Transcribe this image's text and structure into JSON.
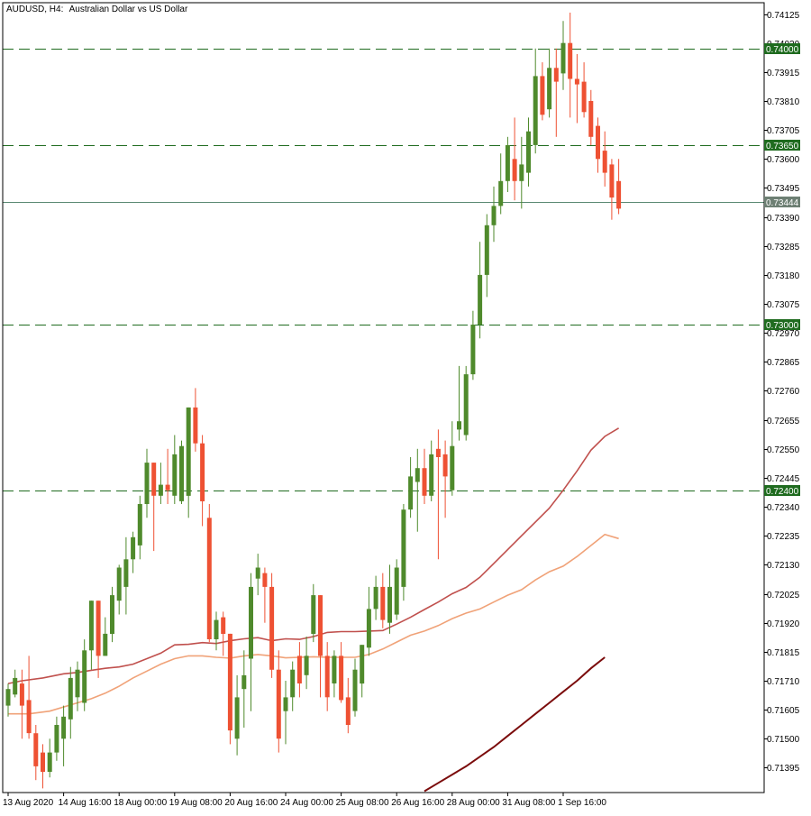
{
  "header": {
    "symbol": "AUDUSD, H4:",
    "description": "Australian Dollar vs US Dollar"
  },
  "colors": {
    "background": "#ffffff",
    "frame": "#000000",
    "bull_candle": "#4f8a2c",
    "bear_candle": "#ee5133",
    "level_line": "#1f6b1f",
    "current_price_line": "#5b8a74",
    "ma_fast": "#c0504d",
    "ma_mid": "#f0a278",
    "ma_slow": "#7b0c0c"
  },
  "chart_data": {
    "type": "candlestick",
    "symbol": "AUDUSD",
    "timeframe": "H4",
    "ylim": [
      0.71305,
      0.74166
    ],
    "y_ticks": [
      "0.74125",
      "0.74020",
      "0.73915",
      "0.73810",
      "0.73705",
      "0.73600",
      "0.73495",
      "0.73390",
      "0.73285",
      "0.73180",
      "0.73075",
      "0.72970",
      "0.72865",
      "0.72760",
      "0.72655",
      "0.72550",
      "0.72445",
      "0.72340",
      "0.72235",
      "0.72130",
      "0.72025",
      "0.71920",
      "0.71815",
      "0.71710",
      "0.71605",
      "0.71500",
      "0.71395"
    ],
    "x_labels": [
      {
        "index": 0,
        "label": "13 Aug 2020"
      },
      {
        "index": 8,
        "label": "14 Aug 16:00"
      },
      {
        "index": 16,
        "label": "18 Aug 00:00"
      },
      {
        "index": 24,
        "label": "19 Aug 08:00"
      },
      {
        "index": 32,
        "label": "20 Aug 16:00"
      },
      {
        "index": 40,
        "label": "24 Aug 00:00"
      },
      {
        "index": 48,
        "label": "25 Aug 08:00"
      },
      {
        "index": 56,
        "label": "26 Aug 16:00"
      },
      {
        "index": 64,
        "label": "28 Aug 00:00"
      },
      {
        "index": 72,
        "label": "31 Aug 08:00"
      },
      {
        "index": 80,
        "label": "1 Sep 16:00"
      }
    ],
    "price_levels": [
      {
        "value": 0.74,
        "label": "0.74000"
      },
      {
        "value": 0.7365,
        "label": "0.73650"
      },
      {
        "value": 0.73,
        "label": "0.73000"
      },
      {
        "value": 0.724,
        "label": "0.72400"
      }
    ],
    "current_price": {
      "value": 0.73444,
      "label": "0.73444"
    },
    "candles": [
      [
        0.7162,
        0.7168,
        0.7158,
        0.717
      ],
      [
        0.7166,
        0.7172,
        0.7165,
        0.7175
      ],
      [
        0.717,
        0.7162,
        0.715,
        0.7175
      ],
      [
        0.7164,
        0.7152,
        0.715,
        0.718
      ],
      [
        0.7152,
        0.714,
        0.7135,
        0.7155
      ],
      [
        0.7145,
        0.7138,
        0.7132,
        0.7148
      ],
      [
        0.7138,
        0.7145,
        0.7136,
        0.715
      ],
      [
        0.7145,
        0.7155,
        0.7142,
        0.7158
      ],
      [
        0.715,
        0.7158,
        0.714,
        0.7162
      ],
      [
        0.7157,
        0.7172,
        0.715,
        0.7176
      ],
      [
        0.7165,
        0.7175,
        0.716,
        0.7178
      ],
      [
        0.7163,
        0.7182,
        0.716,
        0.7186
      ],
      [
        0.7182,
        0.72,
        0.7175,
        0.72
      ],
      [
        0.72,
        0.718,
        0.7172,
        0.72
      ],
      [
        0.718,
        0.7188,
        0.718,
        0.7194
      ],
      [
        0.7188,
        0.7202,
        0.7185,
        0.7205
      ],
      [
        0.72,
        0.7212,
        0.7195,
        0.7213
      ],
      [
        0.7205,
        0.7215,
        0.7195,
        0.7223
      ],
      [
        0.7215,
        0.7223,
        0.721,
        0.7225
      ],
      [
        0.722,
        0.7235,
        0.7215,
        0.7238
      ],
      [
        0.7235,
        0.725,
        0.723,
        0.7255
      ],
      [
        0.725,
        0.7238,
        0.7218,
        0.725
      ],
      [
        0.7238,
        0.7242,
        0.7235,
        0.725
      ],
      [
        0.7242,
        0.724,
        0.7235,
        0.7255
      ],
      [
        0.7238,
        0.7253,
        0.7235,
        0.726
      ],
      [
        0.7236,
        0.7256,
        0.7235,
        0.7258
      ],
      [
        0.7238,
        0.727,
        0.723,
        0.727
      ],
      [
        0.727,
        0.7257,
        0.7254,
        0.7277
      ],
      [
        0.7257,
        0.7236,
        0.7227,
        0.726
      ],
      [
        0.723,
        0.7186,
        0.7185,
        0.7235
      ],
      [
        0.7186,
        0.7193,
        0.7182,
        0.7196
      ],
      [
        0.7194,
        0.7188,
        0.718,
        0.7196
      ],
      [
        0.7188,
        0.7153,
        0.7148,
        0.7188
      ],
      [
        0.715,
        0.7165,
        0.7144,
        0.7173
      ],
      [
        0.7168,
        0.7173,
        0.7154,
        0.7182
      ],
      [
        0.7179,
        0.7205,
        0.716,
        0.721
      ],
      [
        0.7208,
        0.7212,
        0.7202,
        0.7217
      ],
      [
        0.721,
        0.7205,
        0.7192,
        0.7212
      ],
      [
        0.7205,
        0.7175,
        0.7172,
        0.721
      ],
      [
        0.7175,
        0.715,
        0.7145,
        0.7182
      ],
      [
        0.716,
        0.7165,
        0.7148,
        0.7171
      ],
      [
        0.7165,
        0.7175,
        0.716,
        0.7178
      ],
      [
        0.718,
        0.717,
        0.7165,
        0.7185
      ],
      [
        0.7173,
        0.718,
        0.7168,
        0.7187
      ],
      [
        0.7188,
        0.7202,
        0.7185,
        0.7206
      ],
      [
        0.7202,
        0.718,
        0.7165,
        0.7202
      ],
      [
        0.718,
        0.7165,
        0.716,
        0.7185
      ],
      [
        0.717,
        0.718,
        0.7165,
        0.7182
      ],
      [
        0.718,
        0.7164,
        0.7163,
        0.7185
      ],
      [
        0.7165,
        0.7155,
        0.7152,
        0.7172
      ],
      [
        0.716,
        0.7175,
        0.7158,
        0.7179
      ],
      [
        0.717,
        0.7184,
        0.7165,
        0.7184
      ],
      [
        0.7183,
        0.7197,
        0.718,
        0.7205
      ],
      [
        0.7197,
        0.7205,
        0.7193,
        0.7209
      ],
      [
        0.7205,
        0.7193,
        0.719,
        0.721
      ],
      [
        0.7192,
        0.7205,
        0.7188,
        0.7213
      ],
      [
        0.7195,
        0.7212,
        0.7193,
        0.7215
      ],
      [
        0.7205,
        0.7233,
        0.72,
        0.7235
      ],
      [
        0.7233,
        0.7245,
        0.723,
        0.7252
      ],
      [
        0.7243,
        0.7248,
        0.7225,
        0.7255
      ],
      [
        0.7248,
        0.7238,
        0.7235,
        0.7255
      ],
      [
        0.7238,
        0.7253,
        0.7236,
        0.7258
      ],
      [
        0.7255,
        0.7252,
        0.7215,
        0.7262
      ],
      [
        0.7253,
        0.7245,
        0.723,
        0.7258
      ],
      [
        0.724,
        0.7256,
        0.7238,
        0.7265
      ],
      [
        0.7262,
        0.7265,
        0.7258,
        0.7285
      ],
      [
        0.726,
        0.7282,
        0.7258,
        0.7285
      ],
      [
        0.7282,
        0.73,
        0.728,
        0.7305
      ],
      [
        0.73,
        0.7318,
        0.7295,
        0.733
      ],
      [
        0.7318,
        0.7336,
        0.731,
        0.734
      ],
      [
        0.7336,
        0.7343,
        0.733,
        0.735
      ],
      [
        0.7343,
        0.7352,
        0.734,
        0.7362
      ],
      [
        0.7352,
        0.7365,
        0.7348,
        0.7368
      ],
      [
        0.736,
        0.7352,
        0.7345,
        0.7375
      ],
      [
        0.7352,
        0.7358,
        0.7342,
        0.7368
      ],
      [
        0.7355,
        0.737,
        0.735,
        0.7375
      ],
      [
        0.7365,
        0.739,
        0.7362,
        0.74
      ],
      [
        0.739,
        0.7376,
        0.7374,
        0.7395
      ],
      [
        0.7378,
        0.7393,
        0.7375,
        0.74
      ],
      [
        0.7393,
        0.7388,
        0.7368,
        0.74
      ],
      [
        0.7391,
        0.7402,
        0.7385,
        0.741
      ],
      [
        0.7402,
        0.7389,
        0.7375,
        0.7413
      ],
      [
        0.7389,
        0.7387,
        0.7373,
        0.7398
      ],
      [
        0.7388,
        0.7377,
        0.7375,
        0.7395
      ],
      [
        0.7381,
        0.7368,
        0.7365,
        0.7385
      ],
      [
        0.7372,
        0.736,
        0.7355,
        0.7375
      ],
      [
        0.7363,
        0.7355,
        0.735,
        0.737
      ],
      [
        0.7358,
        0.7346,
        0.7338,
        0.736
      ],
      [
        0.7352,
        0.7342,
        0.734,
        0.736
      ]
    ],
    "moving_averages": [
      {
        "points": [
          [
            0,
            0.717
          ],
          [
            2,
            0.7171
          ],
          [
            5,
            0.7172
          ],
          [
            8,
            0.71735
          ],
          [
            10,
            0.7174
          ],
          [
            12,
            0.71748
          ],
          [
            14,
            0.71755
          ],
          [
            16,
            0.7176
          ],
          [
            18,
            0.7177
          ],
          [
            20,
            0.7179
          ],
          [
            22,
            0.7181
          ],
          [
            24,
            0.7184
          ],
          [
            26,
            0.71842
          ],
          [
            28,
            0.71848
          ],
          [
            30,
            0.71845
          ],
          [
            32,
            0.71855
          ],
          [
            34,
            0.71862
          ],
          [
            36,
            0.71866
          ],
          [
            38,
            0.71855
          ],
          [
            40,
            0.71862
          ],
          [
            42,
            0.7186
          ],
          [
            44,
            0.7187
          ],
          [
            46,
            0.71885
          ],
          [
            48,
            0.71888
          ],
          [
            50,
            0.71888
          ],
          [
            52,
            0.7189
          ],
          [
            54,
            0.71892
          ],
          [
            56,
            0.71915
          ],
          [
            58,
            0.7194
          ],
          [
            60,
            0.71968
          ],
          [
            62,
            0.71995
          ],
          [
            64,
            0.72025
          ],
          [
            66,
            0.72048
          ],
          [
            68,
            0.72085
          ],
          [
            70,
            0.72135
          ],
          [
            72,
            0.72185
          ],
          [
            74,
            0.72235
          ],
          [
            76,
            0.72285
          ],
          [
            78,
            0.72335
          ],
          [
            80,
            0.724
          ],
          [
            82,
            0.7247
          ],
          [
            84,
            0.72545
          ],
          [
            86,
            0.72595
          ],
          [
            88,
            0.72625
          ]
        ]
      },
      {
        "points": [
          [
            0,
            0.7159
          ],
          [
            3,
            0.7159
          ],
          [
            6,
            0.716
          ],
          [
            10,
            0.7163
          ],
          [
            12,
            0.71645
          ],
          [
            14,
            0.71665
          ],
          [
            16,
            0.7169
          ],
          [
            18,
            0.7172
          ],
          [
            20,
            0.71745
          ],
          [
            22,
            0.7177
          ],
          [
            24,
            0.7179
          ],
          [
            26,
            0.718
          ],
          [
            28,
            0.718
          ],
          [
            30,
            0.71795
          ],
          [
            32,
            0.71792
          ],
          [
            34,
            0.718
          ],
          [
            36,
            0.71805
          ],
          [
            38,
            0.718
          ],
          [
            40,
            0.71793
          ],
          [
            42,
            0.71795
          ],
          [
            44,
            0.71797
          ],
          [
            46,
            0.71795
          ],
          [
            48,
            0.71795
          ],
          [
            50,
            0.71795
          ],
          [
            52,
            0.71805
          ],
          [
            54,
            0.71825
          ],
          [
            56,
            0.7185
          ],
          [
            58,
            0.71875
          ],
          [
            60,
            0.7189
          ],
          [
            62,
            0.7191
          ],
          [
            64,
            0.71935
          ],
          [
            66,
            0.71955
          ],
          [
            68,
            0.7197
          ],
          [
            70,
            0.71995
          ],
          [
            72,
            0.7202
          ],
          [
            74,
            0.7204
          ],
          [
            76,
            0.72075
          ],
          [
            78,
            0.72105
          ],
          [
            80,
            0.72125
          ],
          [
            82,
            0.7216
          ],
          [
            84,
            0.722
          ],
          [
            86,
            0.7224
          ],
          [
            88,
            0.72225
          ]
        ]
      },
      {
        "points": [
          [
            60,
            0.7131
          ],
          [
            62,
            0.7134
          ],
          [
            64,
            0.7137
          ],
          [
            66,
            0.714
          ],
          [
            68,
            0.71435
          ],
          [
            70,
            0.7147
          ],
          [
            72,
            0.7151
          ],
          [
            74,
            0.7155
          ],
          [
            76,
            0.7159
          ],
          [
            78,
            0.7163
          ],
          [
            80,
            0.7167
          ],
          [
            82,
            0.7171
          ],
          [
            84,
            0.71755
          ],
          [
            86,
            0.71795
          ]
        ]
      }
    ]
  }
}
